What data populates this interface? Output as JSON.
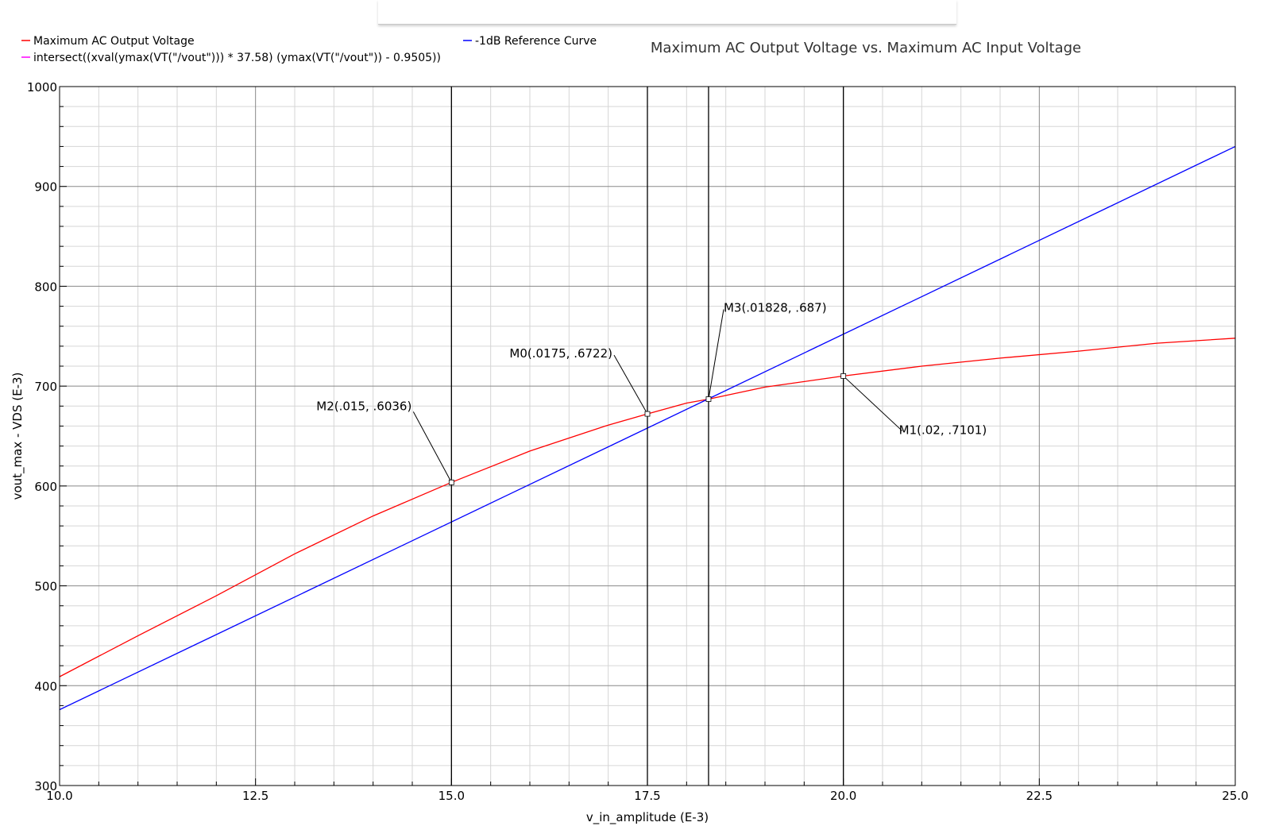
{
  "chart_data": {
    "type": "line",
    "title": "Maximum AC Output Voltage vs. Maximum AC Input Voltage",
    "xlabel": "v_in_amplitude (E-3)",
    "ylabel": "vout_max - VDS (E-3)",
    "xlim": [
      10.0,
      25.0
    ],
    "ylim": [
      300,
      1000
    ],
    "x_ticks": [
      "10.0",
      "12.5",
      "15.0",
      "17.5",
      "20.0",
      "22.5",
      "25.0"
    ],
    "y_ticks": [
      "300",
      "400",
      "500",
      "600",
      "700",
      "800",
      "900",
      "1000"
    ],
    "grid": true,
    "legend": [
      {
        "label": "Maximum AC Output Voltage",
        "color": "#ff0000"
      },
      {
        "label": "-1dB Reference Curve",
        "color": "#0000ff"
      },
      {
        "label": "intersect((xval(ymax(VT(\"/vout\"))) * 37.58) (ymax(VT(\"/vout\")) - 0.9505))",
        "color": "#ff00ff"
      }
    ],
    "series": [
      {
        "name": "Maximum AC Output Voltage",
        "color": "#ff0000",
        "x": [
          10.0,
          11.0,
          12.0,
          13.0,
          14.0,
          15.0,
          16.0,
          17.0,
          17.5,
          18.0,
          18.28,
          19.0,
          20.0,
          21.0,
          22.0,
          23.0,
          24.0,
          25.0
        ],
        "y": [
          409,
          450,
          490,
          532,
          570,
          603.6,
          635,
          661,
          672.2,
          683,
          687,
          699,
          710.1,
          720,
          728,
          735,
          743,
          748
        ]
      },
      {
        "name": "-1dB Reference Curve",
        "color": "#0000ff",
        "x": [
          10.0,
          25.0
        ],
        "y": [
          376,
          940
        ]
      }
    ],
    "vertical_markers": [
      15.0,
      17.5,
      18.28,
      20.0
    ],
    "markers": [
      {
        "label": "M2(.015, .6036)",
        "x": 15.0,
        "y": 603.6
      },
      {
        "label": "M0(.0175, .6722)",
        "x": 17.5,
        "y": 672.2
      },
      {
        "label": "M3(.01828, .687)",
        "x": 18.28,
        "y": 687
      },
      {
        "label": "M1(.02, .7101)",
        "x": 20.0,
        "y": 710.1
      }
    ]
  }
}
